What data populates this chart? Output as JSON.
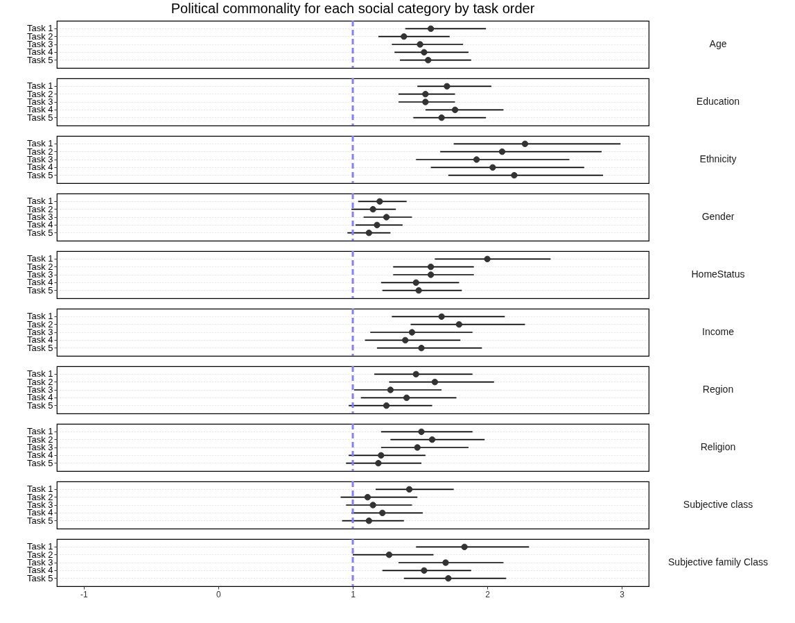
{
  "chart_data": [
    {
      "type": "scatter",
      "orientation": "horizontal",
      "title": "Political commonality for each social category by task order",
      "y2label": "Age",
      "categories": [
        "Task 1",
        "Task 2",
        "Task 3",
        "Task 4",
        "Task 5"
      ],
      "values": [
        1.58,
        1.38,
        1.5,
        1.53,
        1.56
      ],
      "errors": [
        [
          1.39,
          1.99
        ],
        [
          1.19,
          1.72
        ],
        [
          1.29,
          1.82
        ],
        [
          1.31,
          1.86
        ],
        [
          1.35,
          1.88
        ]
      ],
      "color": "#333333",
      "marker": "circle",
      "xlim": [
        -1.2,
        3.2
      ],
      "xticks": [
        -1,
        0,
        1,
        2,
        3
      ],
      "grid": "y",
      "tick_labels": "y",
      "ref_lines": [
        {
          "axis": "x",
          "value": 1,
          "color": "#7f7fff",
          "line_style": "dashed"
        }
      ]
    },
    {
      "type": "scatter",
      "orientation": "horizontal",
      "y2label": "Education",
      "categories": [
        "Task 1",
        "Task 2",
        "Task 3",
        "Task 4",
        "Task 5"
      ],
      "values": [
        1.7,
        1.54,
        1.54,
        1.76,
        1.66
      ],
      "errors": [
        [
          1.48,
          2.03
        ],
        [
          1.34,
          1.76
        ],
        [
          1.34,
          1.76
        ],
        [
          1.54,
          2.12
        ],
        [
          1.45,
          1.99
        ]
      ],
      "color": "#333333",
      "marker": "circle",
      "xlim": [
        -1.2,
        3.2
      ],
      "xticks": [
        -1,
        0,
        1,
        2,
        3
      ],
      "grid": "y",
      "tick_labels": "y",
      "ref_lines": [
        {
          "axis": "x",
          "value": 1,
          "color": "#7f7fff",
          "line_style": "dashed"
        }
      ]
    },
    {
      "type": "scatter",
      "orientation": "horizontal",
      "y2label": "Ethnicity",
      "categories": [
        "Task 1",
        "Task 2",
        "Task 3",
        "Task 4",
        "Task 5"
      ],
      "values": [
        2.28,
        2.11,
        1.92,
        2.04,
        2.2
      ],
      "errors": [
        [
          1.75,
          2.99
        ],
        [
          1.65,
          2.85
        ],
        [
          1.47,
          2.61
        ],
        [
          1.58,
          2.72
        ],
        [
          1.71,
          2.86
        ]
      ],
      "color": "#333333",
      "marker": "circle",
      "xlim": [
        -1.2,
        3.2
      ],
      "xticks": [
        -1,
        0,
        1,
        2,
        3
      ],
      "grid": "y",
      "tick_labels": "y",
      "ref_lines": [
        {
          "axis": "x",
          "value": 1,
          "color": "#7f7fff",
          "line_style": "dashed"
        }
      ]
    },
    {
      "type": "scatter",
      "orientation": "horizontal",
      "y2label": "Gender",
      "categories": [
        "Task 1",
        "Task 2",
        "Task 3",
        "Task 4",
        "Task 5"
      ],
      "values": [
        1.2,
        1.15,
        1.25,
        1.18,
        1.12
      ],
      "errors": [
        [
          1.04,
          1.4
        ],
        [
          0.99,
          1.32
        ],
        [
          1.08,
          1.44
        ],
        [
          1.02,
          1.37
        ],
        [
          0.96,
          1.28
        ]
      ],
      "color": "#333333",
      "marker": "circle",
      "xlim": [
        -1.2,
        3.2
      ],
      "xticks": [
        -1,
        0,
        1,
        2,
        3
      ],
      "grid": "y",
      "tick_labels": "y",
      "ref_lines": [
        {
          "axis": "x",
          "value": 1,
          "color": "#7f7fff",
          "line_style": "dashed"
        }
      ]
    },
    {
      "type": "scatter",
      "orientation": "horizontal",
      "y2label": "HomeStatus",
      "categories": [
        "Task 1",
        "Task 2",
        "Task 3",
        "Task 4",
        "Task 5"
      ],
      "values": [
        2.0,
        1.58,
        1.58,
        1.47,
        1.49
      ],
      "errors": [
        [
          1.61,
          2.47
        ],
        [
          1.3,
          1.9
        ],
        [
          1.3,
          1.9
        ],
        [
          1.21,
          1.79
        ],
        [
          1.22,
          1.81
        ]
      ],
      "color": "#333333",
      "marker": "circle",
      "xlim": [
        -1.2,
        3.2
      ],
      "xticks": [
        -1,
        0,
        1,
        2,
        3
      ],
      "grid": "y",
      "tick_labels": "y",
      "ref_lines": [
        {
          "axis": "x",
          "value": 1,
          "color": "#7f7fff",
          "line_style": "dashed"
        }
      ]
    },
    {
      "type": "scatter",
      "orientation": "horizontal",
      "y2label": "Income",
      "categories": [
        "Task 1",
        "Task 2",
        "Task 3",
        "Task 4",
        "Task 5"
      ],
      "values": [
        1.66,
        1.79,
        1.44,
        1.39,
        1.51
      ],
      "errors": [
        [
          1.29,
          2.13
        ],
        [
          1.43,
          2.28
        ],
        [
          1.13,
          1.89
        ],
        [
          1.09,
          1.8
        ],
        [
          1.18,
          1.96
        ]
      ],
      "color": "#333333",
      "marker": "circle",
      "xlim": [
        -1.2,
        3.2
      ],
      "xticks": [
        -1,
        0,
        1,
        2,
        3
      ],
      "grid": "y",
      "tick_labels": "y",
      "ref_lines": [
        {
          "axis": "x",
          "value": 1,
          "color": "#7f7fff",
          "line_style": "dashed"
        }
      ]
    },
    {
      "type": "scatter",
      "orientation": "horizontal",
      "y2label": "Region",
      "categories": [
        "Task 1",
        "Task 2",
        "Task 3",
        "Task 4",
        "Task 5"
      ],
      "values": [
        1.47,
        1.61,
        1.28,
        1.4,
        1.25
      ],
      "errors": [
        [
          1.16,
          1.89
        ],
        [
          1.27,
          2.05
        ],
        [
          1.01,
          1.66
        ],
        [
          1.06,
          1.77
        ],
        [
          0.97,
          1.59
        ]
      ],
      "color": "#333333",
      "marker": "circle",
      "xlim": [
        -1.2,
        3.2
      ],
      "xticks": [
        -1,
        0,
        1,
        2,
        3
      ],
      "grid": "y",
      "tick_labels": "y",
      "ref_lines": [
        {
          "axis": "x",
          "value": 1,
          "color": "#7f7fff",
          "line_style": "dashed"
        }
      ]
    },
    {
      "type": "scatter",
      "orientation": "horizontal",
      "y2label": "Religion",
      "categories": [
        "Task 1",
        "Task 2",
        "Task 3",
        "Task 4",
        "Task 5"
      ],
      "values": [
        1.51,
        1.59,
        1.48,
        1.21,
        1.19
      ],
      "errors": [
        [
          1.21,
          1.89
        ],
        [
          1.28,
          1.98
        ],
        [
          1.21,
          1.86
        ],
        [
          0.97,
          1.54
        ],
        [
          0.95,
          1.51
        ]
      ],
      "color": "#333333",
      "marker": "circle",
      "xlim": [
        -1.2,
        3.2
      ],
      "xticks": [
        -1,
        0,
        1,
        2,
        3
      ],
      "grid": "y",
      "tick_labels": "y",
      "ref_lines": [
        {
          "axis": "x",
          "value": 1,
          "color": "#7f7fff",
          "line_style": "dashed"
        }
      ]
    },
    {
      "type": "scatter",
      "orientation": "horizontal",
      "y2label": "Subjective class",
      "categories": [
        "Task 1",
        "Task 2",
        "Task 3",
        "Task 4",
        "Task 5"
      ],
      "values": [
        1.42,
        1.11,
        1.15,
        1.22,
        1.12
      ],
      "errors": [
        [
          1.17,
          1.75
        ],
        [
          0.91,
          1.48
        ],
        [
          0.95,
          1.44
        ],
        [
          0.99,
          1.52
        ],
        [
          0.92,
          1.38
        ]
      ],
      "color": "#333333",
      "marker": "circle",
      "xlim": [
        -1.2,
        3.2
      ],
      "xticks": [
        -1,
        0,
        1,
        2,
        3
      ],
      "grid": "y",
      "tick_labels": "y",
      "ref_lines": [
        {
          "axis": "x",
          "value": 1,
          "color": "#7f7fff",
          "line_style": "dashed"
        }
      ]
    },
    {
      "type": "scatter",
      "orientation": "horizontal",
      "y2label": "Subjective family Class",
      "categories": [
        "Task 1",
        "Task 2",
        "Task 3",
        "Task 4",
        "Task 5"
      ],
      "values": [
        1.83,
        1.27,
        1.69,
        1.53,
        1.71
      ],
      "errors": [
        [
          1.47,
          2.31
        ],
        [
          1.0,
          1.6
        ],
        [
          1.34,
          2.12
        ],
        [
          1.22,
          1.88
        ],
        [
          1.38,
          2.14
        ]
      ],
      "color": "#333333",
      "marker": "circle",
      "xlim": [
        -1.2,
        3.2
      ],
      "xticks": [
        -1,
        0,
        1,
        2,
        3
      ],
      "grid": "y",
      "ref_lines": [
        {
          "axis": "x",
          "value": 1,
          "color": "#7f7fff",
          "line_style": "dashed"
        }
      ]
    }
  ]
}
